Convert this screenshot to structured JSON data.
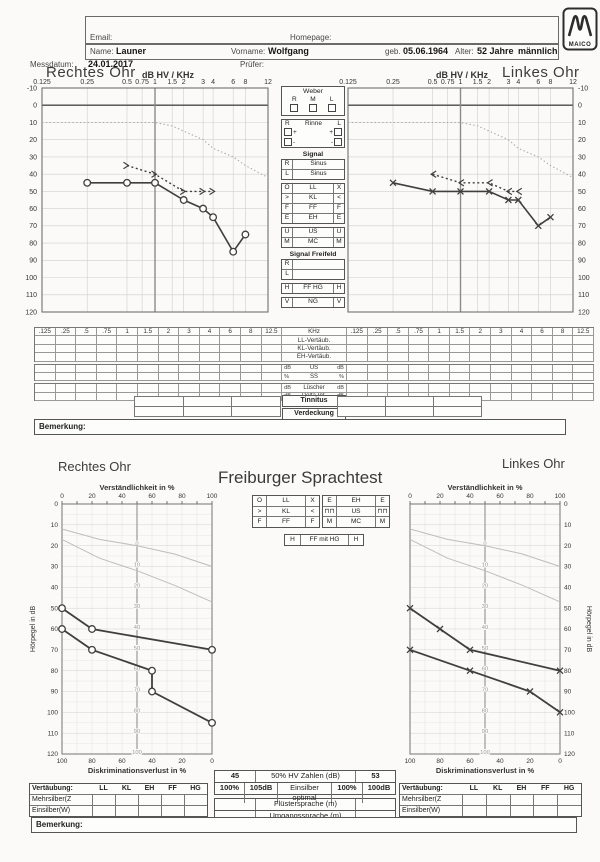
{
  "header": {
    "email_label": "Email:",
    "homepage_label": "Homepage:",
    "name_label": "Name:",
    "name": "Launer",
    "vorname_label": "Vorname:",
    "vorname": "Wolfgang",
    "geb_label": "geb.",
    "geb": "05.06.1964",
    "alter_label": "Alter:",
    "alter": "52 Jahre",
    "gender": "männlich",
    "messdatum_label": "Messdatum:",
    "messdatum": "24.01.2017",
    "pruefer_label": "Prüfer:",
    "logo_text": "MAICO"
  },
  "tone": {
    "right_title": "Rechtes Ohr",
    "left_title": "Linkes Ohr",
    "axis_label": "dB HV / KHz",
    "legend": {
      "weber": {
        "title": "Weber",
        "cols": [
          "R",
          "M",
          "L"
        ]
      },
      "rinne": {
        "left": "R",
        "title": "Rinne",
        "right": "L",
        "rows": [
          [
            "+",
            "+"
          ],
          [
            "-",
            "-"
          ]
        ]
      },
      "signal_title": "Signal",
      "signal_rows": [
        [
          "R",
          "Sinus"
        ],
        [
          "L",
          "Sinus"
        ]
      ],
      "symbols": [
        [
          "O",
          "LL",
          "X"
        ],
        [
          ">",
          "KL",
          "<"
        ],
        [
          "F",
          "FF",
          "F"
        ],
        [
          "E",
          "EH",
          "E"
        ]
      ],
      "symbols2": [
        [
          "U",
          "US",
          "U"
        ],
        [
          "M",
          "MC",
          "M"
        ]
      ],
      "freifeld_title": "Signal Freifeld",
      "freifeld_rows": [
        "R",
        "L"
      ],
      "hffhg": [
        "H",
        "FF HG",
        "H"
      ],
      "vng": [
        "V",
        "NG",
        "V"
      ]
    }
  },
  "freq_table": {
    "cols": [
      ".125",
      ".25",
      ".5",
      ".75",
      "1",
      "1.5",
      "2",
      "3",
      "4",
      "6",
      "8",
      "12.5"
    ],
    "center_rows": [
      [
        "",
        "KHz",
        ""
      ],
      [
        "",
        "LL-Vertäub.",
        ""
      ],
      [
        "",
        "KL-Vertäub.",
        ""
      ],
      [
        "",
        "EH-Vertäub.",
        ""
      ],
      [
        "dB",
        "US",
        "dB"
      ],
      [
        "%",
        "SS",
        "%"
      ],
      [
        "dB",
        "Lüscher",
        "dB"
      ],
      [
        "dB",
        "Delta-Int.",
        "dB"
      ]
    ],
    "tinnitus": "Tinnitus",
    "verdeckung": "Verdeckung"
  },
  "bemerkung_label": "Bemerkung:",
  "speech": {
    "title": "Freiburger Sprachtest",
    "right_title": "Rechtes Ohr",
    "left_title": "Linkes Ohr",
    "legendA": [
      [
        "O",
        "LL",
        "X"
      ],
      [
        ">",
        "KL",
        "<"
      ],
      [
        "F",
        "FF",
        "F"
      ]
    ],
    "legendB": [
      [
        "E",
        "EH",
        "E"
      ],
      [
        "⊓⊓",
        "US",
        "⊓⊓"
      ],
      [
        "M",
        "MC",
        "M"
      ]
    ],
    "legend_h": [
      "H",
      "FF mit HG",
      "H"
    ],
    "summary": {
      "zahlen_right": "45",
      "zahlen_label": "50% HV Zahlen (dB)",
      "zahlen_left": "53",
      "eins_right_pct": "100%",
      "eins_right_db": "105dB",
      "eins_label": "Einsilber optimal",
      "eins_left_pct": "100%",
      "eins_left_db": "100dB",
      "fluester": "Flüstersprache (m)",
      "umgang": "Umgangssprache (m)"
    },
    "vertaeubung": {
      "header": [
        "Vertäubung:",
        "LL",
        "KL",
        "EH",
        "FF",
        "HG"
      ],
      "rows": [
        "Mehrsilber(Z",
        "Einsilber(W)"
      ]
    }
  },
  "chart_data": [
    {
      "id": "tone_right",
      "type": "line",
      "title": "Rechtes Ohr",
      "xticks": [
        0.125,
        0.25,
        0.5,
        0.75,
        1,
        1.5,
        2,
        3,
        4,
        6,
        8,
        12
      ],
      "x_unit": "kHz",
      "ylabel": "dB HV",
      "ylim": [
        -10,
        120
      ],
      "series": [
        {
          "name": "Luftleitung",
          "symbol": "O",
          "style": "solid",
          "points": [
            [
              0.25,
              45
            ],
            [
              0.5,
              45
            ],
            [
              1,
              45
            ],
            [
              2,
              55
            ],
            [
              3,
              60
            ],
            [
              4,
              65
            ],
            [
              6,
              85
            ],
            [
              8,
              75
            ]
          ]
        },
        {
          "name": "Knochenleitung",
          "symbol": ">",
          "style": "dotted",
          "points": [
            [
              0.5,
              35
            ],
            [
              1,
              40
            ],
            [
              2,
              50
            ],
            [
              3,
              50
            ],
            [
              4,
              50
            ]
          ]
        },
        {
          "name": "Normalkurve",
          "symbol": "none",
          "style": "dotted-light",
          "points": [
            [
              0.125,
              10
            ],
            [
              0.25,
              10
            ],
            [
              0.5,
              10
            ],
            [
              0.75,
              10
            ],
            [
              1,
              10
            ],
            [
              1.5,
              12
            ],
            [
              2,
              15
            ],
            [
              3,
              20
            ],
            [
              4,
              25
            ],
            [
              6,
              30
            ],
            [
              8,
              35
            ],
            [
              12,
              42
            ]
          ]
        }
      ]
    },
    {
      "id": "tone_left",
      "type": "line",
      "title": "Linkes Ohr",
      "xticks": [
        0.125,
        0.25,
        0.5,
        0.75,
        1,
        1.5,
        2,
        3,
        4,
        6,
        8,
        12
      ],
      "x_unit": "kHz",
      "ylabel": "dB HV",
      "ylim": [
        -10,
        120
      ],
      "series": [
        {
          "name": "Luftleitung",
          "symbol": "X",
          "style": "solid",
          "points": [
            [
              0.25,
              45
            ],
            [
              0.5,
              50
            ],
            [
              1,
              50
            ],
            [
              2,
              50
            ],
            [
              3,
              55
            ],
            [
              4,
              55
            ],
            [
              6,
              70
            ],
            [
              8,
              65
            ]
          ]
        },
        {
          "name": "Knochenleitung",
          "symbol": "<",
          "style": "dotted",
          "points": [
            [
              0.5,
              40
            ],
            [
              1,
              45
            ],
            [
              2,
              45
            ],
            [
              3,
              50
            ],
            [
              4,
              50
            ]
          ]
        },
        {
          "name": "Normalkurve",
          "symbol": "none",
          "style": "dotted-light",
          "points": [
            [
              0.125,
              10
            ],
            [
              0.25,
              10
            ],
            [
              0.5,
              10
            ],
            [
              0.75,
              10
            ],
            [
              1,
              10
            ],
            [
              1.5,
              12
            ],
            [
              2,
              15
            ],
            [
              3,
              20
            ],
            [
              4,
              25
            ],
            [
              6,
              30
            ],
            [
              8,
              35
            ],
            [
              12,
              42
            ]
          ]
        }
      ]
    },
    {
      "id": "speech_right",
      "type": "line",
      "title": "Rechtes Ohr",
      "xlabel_top": "Verständlichkeit in %",
      "xlabel_bottom": "Diskriminationsverlust in %",
      "ylabel": "Hörpegel in dB",
      "xlim": [
        0,
        100
      ],
      "ylim": [
        0,
        120
      ],
      "mid_scale_labels": [
        0,
        10,
        20,
        30,
        40,
        50,
        60,
        70,
        80,
        90,
        100
      ],
      "series": [
        {
          "name": "Normkurve Zahlen",
          "symbol": "none",
          "style": "light",
          "points": [
            [
              0,
              12
            ],
            [
              25,
              17
            ],
            [
              50,
              20
            ],
            [
              75,
              24
            ],
            [
              100,
              30
            ]
          ]
        },
        {
          "name": "Normkurve Einsilber",
          "symbol": "none",
          "style": "light",
          "points": [
            [
              0,
              17
            ],
            [
              25,
              26
            ],
            [
              50,
              32
            ],
            [
              75,
              39
            ],
            [
              100,
              47
            ]
          ]
        },
        {
          "name": "Zahlen",
          "symbol": "O",
          "style": "solid",
          "points": [
            [
              0,
              50
            ],
            [
              20,
              60
            ],
            [
              100,
              70
            ]
          ]
        },
        {
          "name": "Einsilber",
          "symbol": "O",
          "style": "solid",
          "points": [
            [
              0,
              60
            ],
            [
              20,
              70
            ],
            [
              60,
              80
            ],
            [
              60,
              90
            ],
            [
              100,
              105
            ]
          ]
        }
      ]
    },
    {
      "id": "speech_left",
      "type": "line",
      "title": "Linkes Ohr",
      "xlabel_top": "Verständlichkeit in %",
      "xlabel_bottom": "Diskriminationsverlust in %",
      "ylabel": "Hörpegel in dB",
      "xlim": [
        0,
        100
      ],
      "ylim": [
        0,
        120
      ],
      "mid_scale_labels": [
        0,
        10,
        20,
        30,
        40,
        50,
        60,
        70,
        80,
        90,
        100
      ],
      "series": [
        {
          "name": "Normkurve Zahlen",
          "symbol": "none",
          "style": "light",
          "points": [
            [
              0,
              12
            ],
            [
              25,
              17
            ],
            [
              50,
              20
            ],
            [
              75,
              24
            ],
            [
              100,
              30
            ]
          ]
        },
        {
          "name": "Normkurve Einsilber",
          "symbol": "none",
          "style": "light",
          "points": [
            [
              0,
              17
            ],
            [
              25,
              26
            ],
            [
              50,
              32
            ],
            [
              75,
              39
            ],
            [
              100,
              47
            ]
          ]
        },
        {
          "name": "Zahlen",
          "symbol": "X",
          "style": "solid",
          "points": [
            [
              0,
              50
            ],
            [
              20,
              60
            ],
            [
              40,
              70
            ],
            [
              100,
              80
            ]
          ]
        },
        {
          "name": "Einsilber",
          "symbol": "X",
          "style": "solid",
          "points": [
            [
              0,
              70
            ],
            [
              40,
              80
            ],
            [
              80,
              90
            ],
            [
              100,
              100
            ]
          ]
        }
      ]
    }
  ]
}
